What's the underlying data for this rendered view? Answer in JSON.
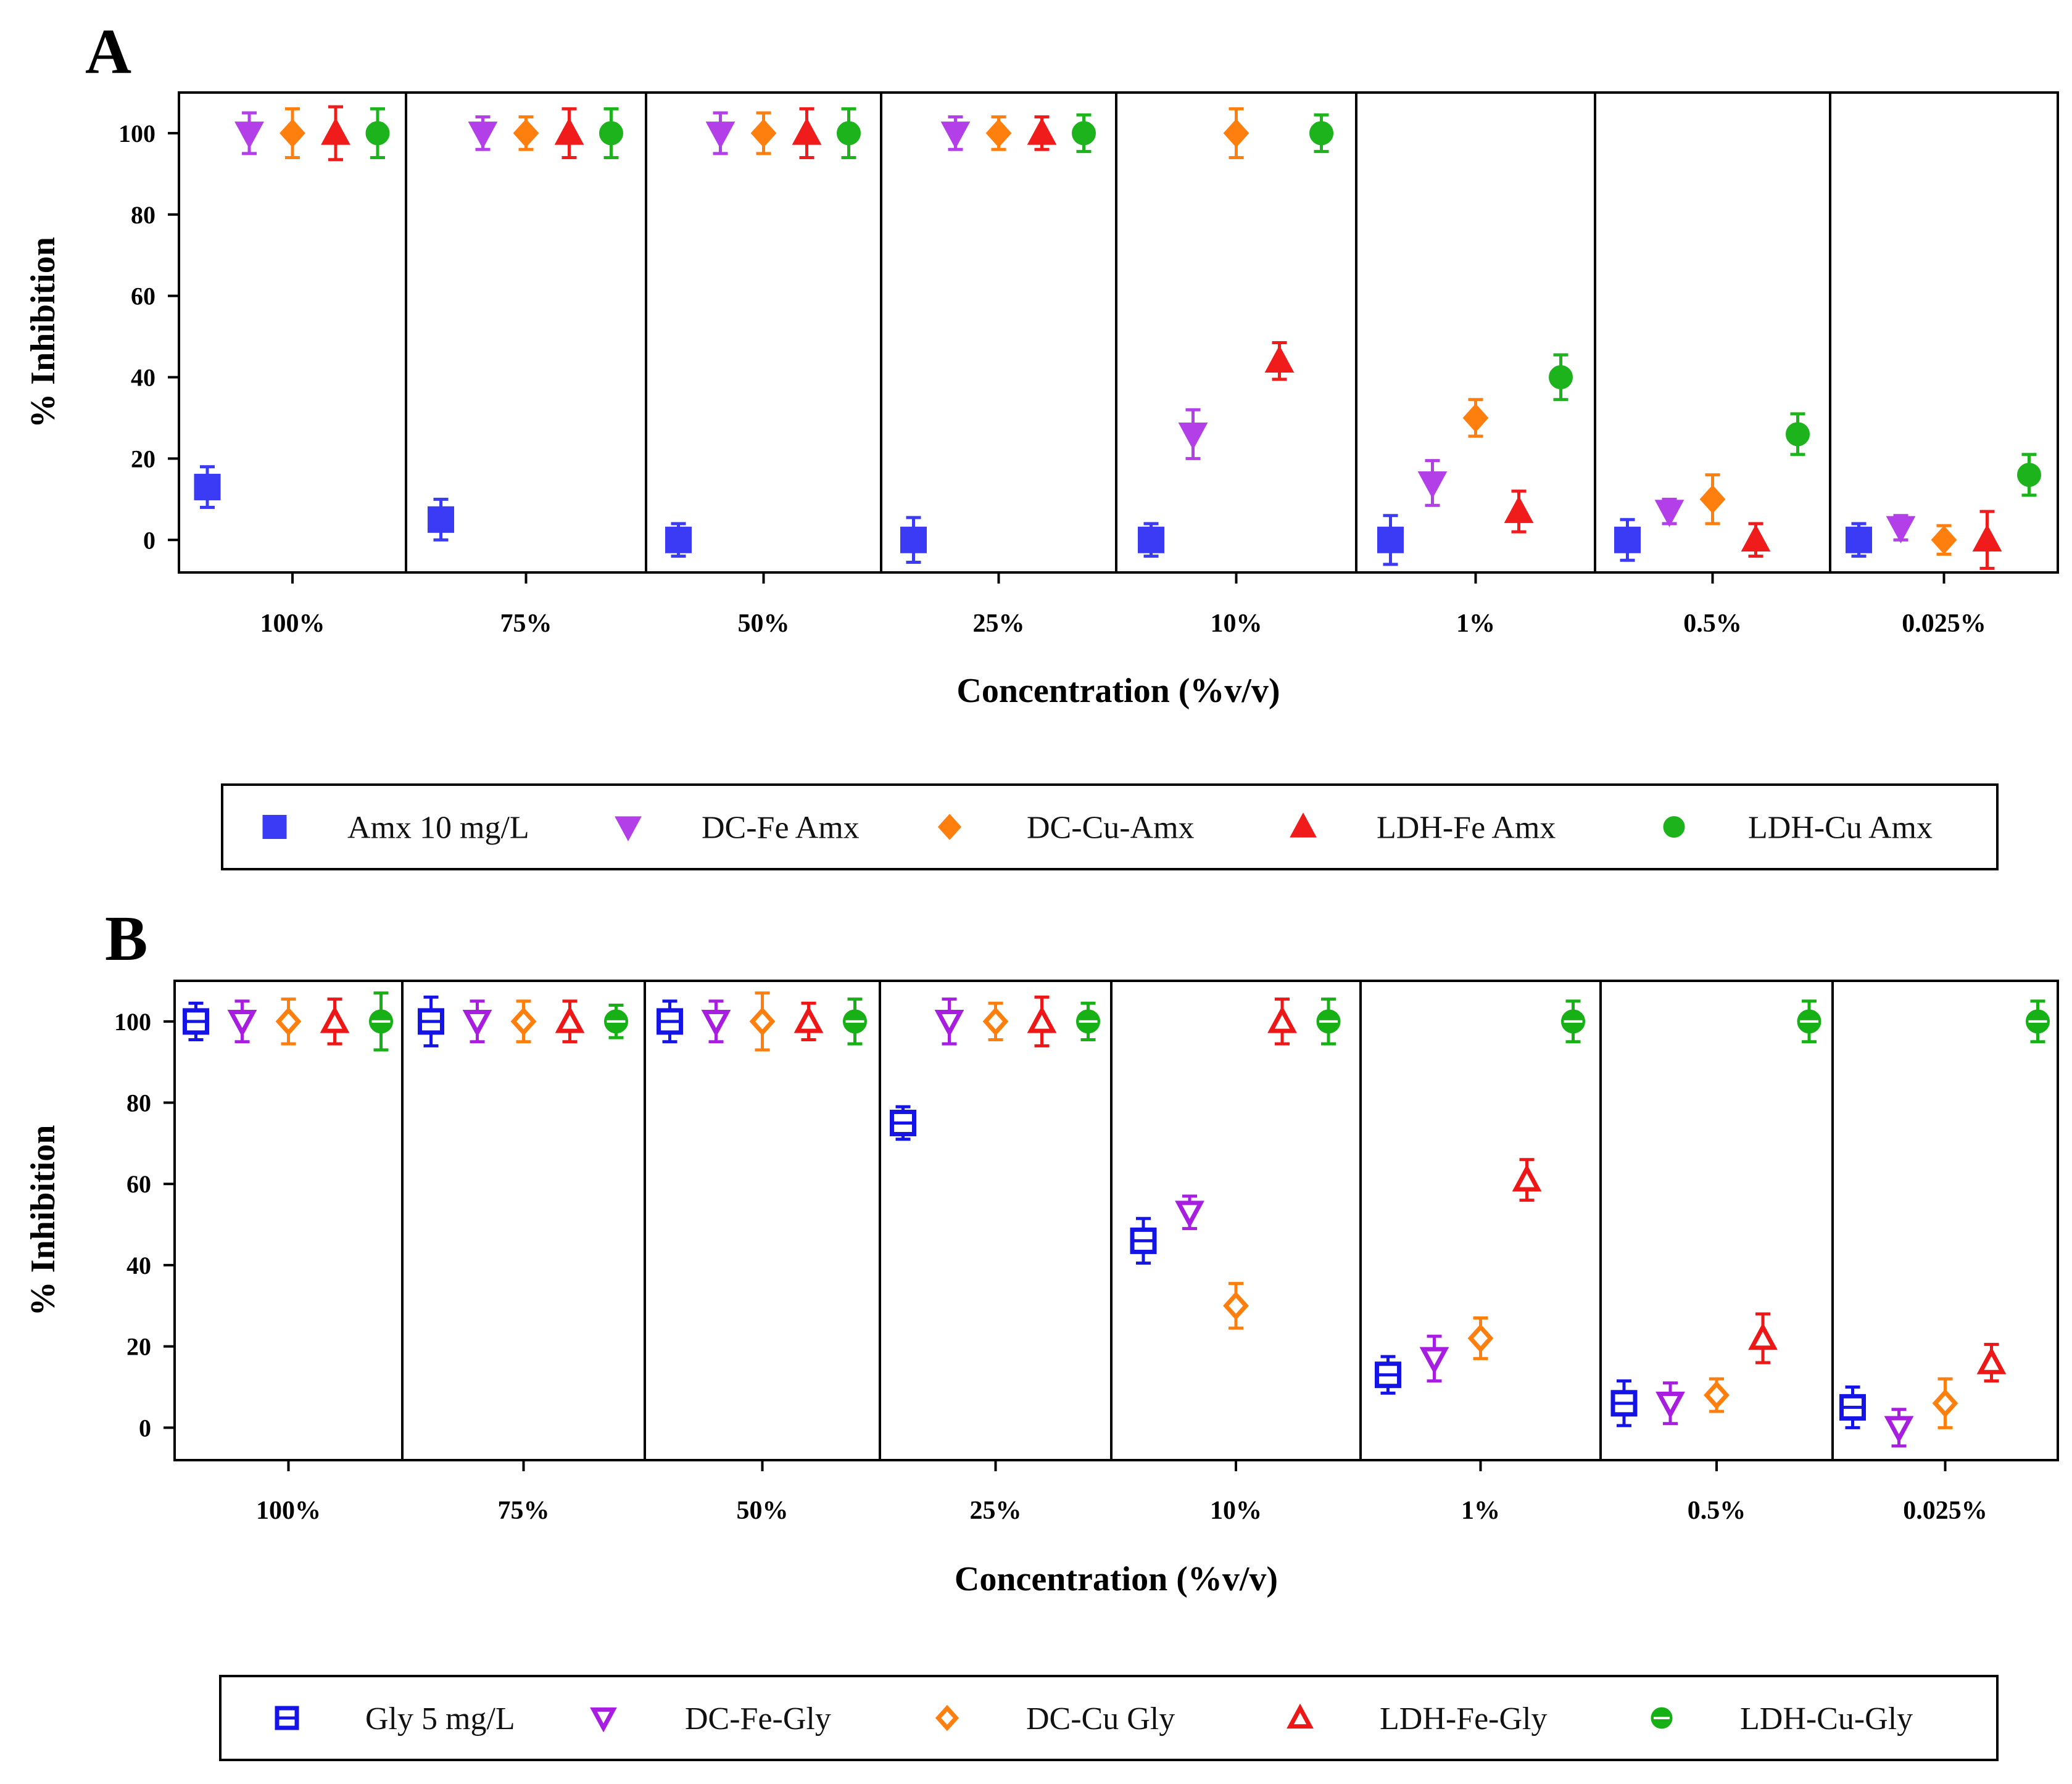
{
  "chart_data": [
    {
      "panel": "A",
      "type": "scatter",
      "title": "",
      "xlabel": "Concentration (%v/v)",
      "ylabel": "% Inhibition",
      "ylim": [
        -8,
        110
      ],
      "yticks": [
        "0",
        "20",
        "40",
        "60",
        "80",
        "100"
      ],
      "categories": [
        "100%",
        "75%",
        "50%",
        "25%",
        "10%",
        "1%",
        "0.5%",
        "0.025%"
      ],
      "series": [
        {
          "name": "Amx 10 mg/L",
          "color": "#3b3bf5",
          "marker": "square-filled",
          "values": [
            13,
            5,
            0,
            0,
            0,
            0,
            0,
            0
          ],
          "errors": [
            5,
            5,
            4,
            5.5,
            4,
            6,
            5,
            4
          ]
        },
        {
          "name": "DC-Fe Amx",
          "color": "#b23fe8",
          "marker": "triangle-down-filled",
          "values": [
            100,
            100,
            100,
            100,
            26,
            14,
            7,
            3
          ],
          "errors": [
            5,
            4,
            5,
            4,
            6,
            5.5,
            3,
            3
          ]
        },
        {
          "name": "DC-Cu-Amx",
          "color": "#ff7f0e",
          "marker": "diamond-filled",
          "values": [
            100,
            100,
            100,
            100,
            100,
            null,
            10,
            0
          ],
          "errors": [
            6,
            4,
            5,
            4,
            6,
            0,
            6,
            3.5
          ]
        },
        {
          "name": "LDH-Fe Amx",
          "color": "#f01b1b",
          "marker": "triangle-up-filled",
          "values": [
            100,
            100,
            100,
            100,
            44,
            7,
            0,
            0
          ],
          "errors": [
            6.5,
            6,
            6,
            4,
            4.5,
            5,
            4,
            7
          ]
        },
        {
          "name": "LDH-Cu Amx",
          "color": "#1db31d",
          "marker": "circle-filled",
          "values": [
            100,
            100,
            100,
            100,
            100,
            40,
            26,
            16
          ],
          "errors": [
            6,
            6,
            6,
            4.5,
            4.5,
            5.5,
            5,
            5
          ]
        }
      ],
      "extra_points": [
        {
          "series": "DC-Cu-Amx",
          "category": "1%",
          "value": 30,
          "error": 4.5
        }
      ]
    },
    {
      "panel": "B",
      "type": "scatter",
      "title": "",
      "xlabel": "Concentration (%v/v)",
      "ylabel": "% Inhibition",
      "ylim": [
        -8,
        110
      ],
      "yticks": [
        "0",
        "20",
        "40",
        "60",
        "80",
        "100"
      ],
      "categories": [
        "100%",
        "75%",
        "50%",
        "25%",
        "10%",
        "1%",
        "0.5%",
        "0.025%"
      ],
      "series": [
        {
          "name": "Gly 5 mg/L",
          "color": "#1414e6",
          "marker": "square-open",
          "values": [
            100,
            100,
            100,
            75,
            46,
            13,
            6,
            5
          ],
          "errors": [
            4.5,
            6,
            5,
            4,
            5.5,
            4.5,
            5.5,
            5
          ]
        },
        {
          "name": "DC-Fe-Gly",
          "color": "#a71ee0",
          "marker": "triangle-down-open",
          "values": [
            100,
            100,
            100,
            100,
            53,
            17,
            6,
            0
          ],
          "errors": [
            5,
            5,
            5,
            5.5,
            4,
            5.5,
            5,
            4.5
          ]
        },
        {
          "name": "DC-Cu Gly",
          "color": "#ff7f0e",
          "marker": "diamond-open",
          "values": [
            100,
            100,
            100,
            100,
            30,
            22,
            8,
            6
          ],
          "errors": [
            5.5,
            5,
            7,
            4.5,
            5.5,
            5,
            4,
            6
          ]
        },
        {
          "name": "LDH-Fe-Gly",
          "color": "#ee1717",
          "marker": "triangle-up-open",
          "values": [
            100,
            100,
            100,
            100,
            100,
            61,
            22,
            16
          ],
          "errors": [
            5.5,
            5,
            4.5,
            6,
            5.5,
            5,
            6,
            4.5
          ]
        },
        {
          "name": "LDH-Cu-Gly",
          "color": "#17b017",
          "marker": "circle-half",
          "values": [
            100,
            100,
            100,
            100,
            100,
            100,
            100,
            100
          ],
          "errors": [
            7,
            4,
            5.5,
            4.5,
            5.5,
            5,
            5,
            5
          ]
        }
      ]
    }
  ]
}
